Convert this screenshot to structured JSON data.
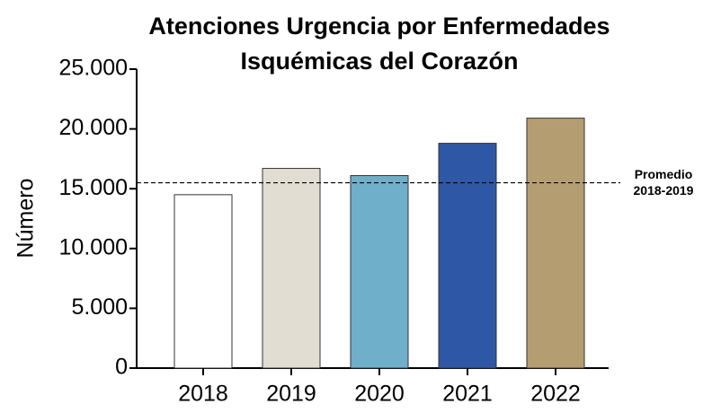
{
  "chart_data": {
    "type": "bar",
    "title": [
      "Atenciones Urgencia por Enfermedades",
      "Isquémicas del Corazón"
    ],
    "y_label": "Número",
    "categories": [
      "2018",
      "2019",
      "2020",
      "2021",
      "2022"
    ],
    "values": [
      14500,
      16700,
      16100,
      18800,
      20900
    ],
    "colors": [
      "#ffffff",
      "#e2ddd2",
      "#6fafc9",
      "#2e58a6",
      "#b59d72"
    ],
    "ylim": [
      0,
      25000
    ],
    "yticks": [
      0,
      {
        "value": 5000,
        "label": "5.000"
      },
      {
        "value": 10000,
        "label": "10.000"
      },
      {
        "value": 15000,
        "label": "15.000"
      },
      {
        "value": 20000,
        "label": "20.000"
      },
      {
        "value": 25000,
        "label": "25.000"
      }
    ],
    "reference_line": {
      "value": 15500,
      "label": [
        "Promedio",
        "2018-2019"
      ]
    },
    "grid": false
  }
}
